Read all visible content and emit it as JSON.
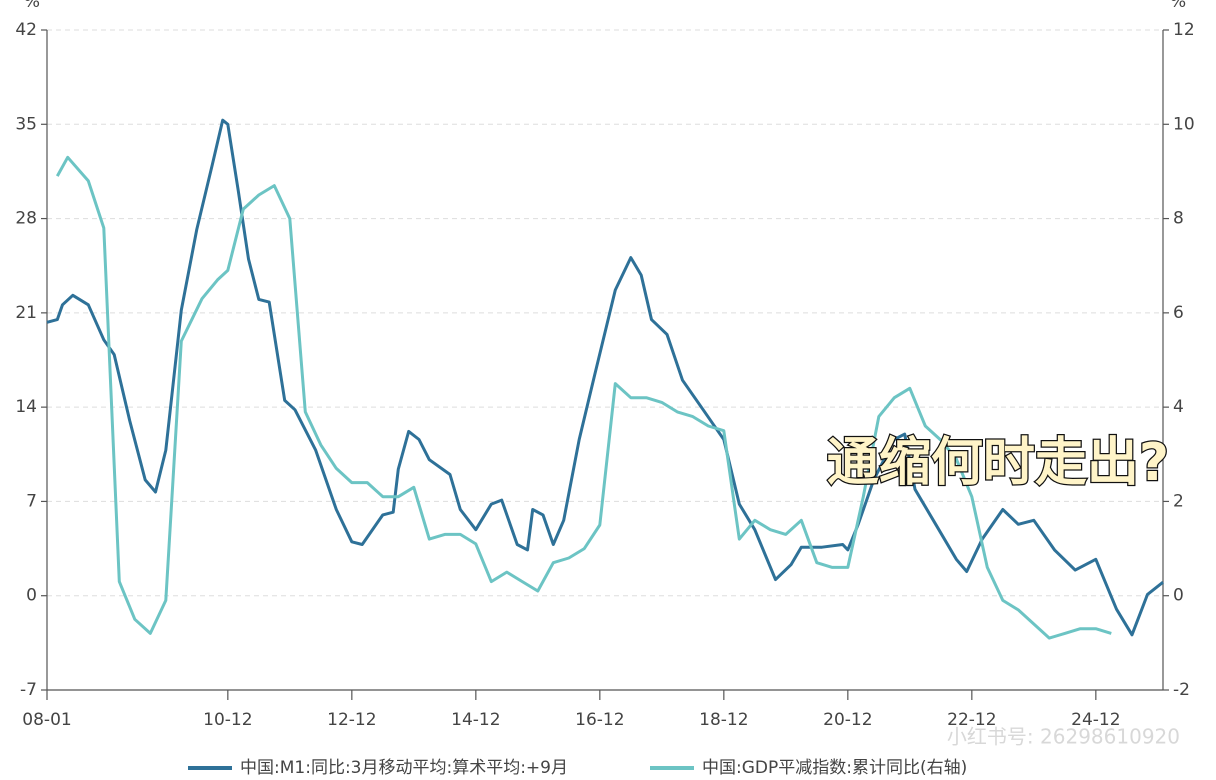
{
  "chart_data": {
    "type": "line",
    "y_unit": "%",
    "y2_unit": "%",
    "annotation": "通缩何时走出?",
    "watermark": "小红书号: 26298610920",
    "xlim": [
      "08-01",
      "26-01"
    ],
    "xticks": [
      "08-01",
      "10-12",
      "12-12",
      "14-12",
      "16-12",
      "18-12",
      "20-12",
      "22-12",
      "24-12"
    ],
    "ylim": [
      -7,
      42
    ],
    "yticks": [
      -7,
      0,
      7,
      14,
      21,
      28,
      35,
      42
    ],
    "y2lim": [
      -2,
      12
    ],
    "y2ticks": [
      -2,
      0,
      2,
      4,
      6,
      8,
      10,
      12
    ],
    "grid": true,
    "series": [
      {
        "name": "中国:M1:同比:3月移动平均:算术平均:+9月",
        "color": "#2e7198",
        "x": [
          "08-01",
          "08-03",
          "08-04",
          "08-06",
          "08-09",
          "08-12",
          "09-02",
          "09-05",
          "09-08",
          "09-10",
          "09-12",
          "10-03",
          "10-06",
          "10-09",
          "10-11",
          "10-12",
          "11-02",
          "11-04",
          "11-06",
          "11-08",
          "11-11",
          "12-01",
          "12-05",
          "12-09",
          "12-12",
          "13-02",
          "13-06",
          "13-08",
          "13-09",
          "13-11",
          "14-01",
          "14-03",
          "14-07",
          "14-09",
          "14-12",
          "15-03",
          "15-05",
          "15-08",
          "15-10",
          "15-11",
          "16-01",
          "16-03",
          "16-05",
          "16-08",
          "16-11",
          "17-03",
          "17-06",
          "17-08",
          "17-10",
          "18-01",
          "18-04",
          "18-08",
          "18-10",
          "18-12",
          "19-03",
          "19-06",
          "19-10",
          "20-01",
          "20-03",
          "20-07",
          "20-11",
          "20-12",
          "21-02",
          "21-05",
          "21-09",
          "21-11",
          "22-01",
          "22-05",
          "22-09",
          "22-11",
          "23-02",
          "23-06",
          "23-09",
          "23-12",
          "24-04",
          "24-08",
          "24-12",
          "25-04",
          "25-07",
          "25-10",
          "26-01"
        ],
        "values": [
          20.3,
          20.5,
          21.6,
          22.3,
          21.6,
          19,
          17.9,
          13,
          8.6,
          7.7,
          10.8,
          21.2,
          27.2,
          32,
          35.3,
          35,
          30.1,
          25,
          22,
          21.8,
          14.5,
          13.8,
          10.8,
          6.4,
          4,
          3.8,
          6,
          6.2,
          9.4,
          12.2,
          11.6,
          10.1,
          9,
          6.4,
          4.9,
          6.8,
          7.1,
          3.8,
          3.4,
          6.4,
          6,
          3.8,
          5.6,
          11.6,
          16.4,
          22.7,
          25.1,
          23.8,
          20.5,
          19.4,
          16,
          13.8,
          12.7,
          11.6,
          6.8,
          4.9,
          1.2,
          2.3,
          3.6,
          3.6,
          3.8,
          3.4,
          5.3,
          8.6,
          11.6,
          12,
          7.9,
          5.3,
          2.7,
          1.8,
          4.2,
          6.4,
          5.3,
          5.6,
          3.4,
          1.9,
          2.7,
          -1,
          -2.9,
          0.1,
          1
        ]
      },
      {
        "name": "中国:GDP平减指数:累计同比(右轴)",
        "color": "#6cc4c4",
        "axis": "y2",
        "x": [
          "08-03",
          "08-05",
          "08-09",
          "08-12",
          "09-03",
          "09-06",
          "09-09",
          "09-12",
          "10-03",
          "10-07",
          "10-10",
          "10-12",
          "11-03",
          "11-06",
          "11-09",
          "11-12",
          "12-03",
          "12-06",
          "12-09",
          "12-12",
          "13-03",
          "13-06",
          "13-09",
          "13-12",
          "14-03",
          "14-06",
          "14-09",
          "14-12",
          "15-03",
          "15-06",
          "15-09",
          "15-12",
          "16-03",
          "16-06",
          "16-09",
          "16-12",
          "17-03",
          "17-06",
          "17-09",
          "17-12",
          "18-03",
          "18-06",
          "18-09",
          "18-12",
          "19-03",
          "19-06",
          "19-09",
          "19-12",
          "20-03",
          "20-06",
          "20-09",
          "20-12",
          "21-03",
          "21-06",
          "21-09",
          "21-12",
          "22-03",
          "22-06",
          "22-09",
          "22-12",
          "23-03",
          "23-06",
          "23-09",
          "23-12",
          "24-03",
          "24-06",
          "24-09",
          "24-12",
          "25-03"
        ],
        "values": [
          8.9,
          9.3,
          8.8,
          7.8,
          0.3,
          -0.5,
          -0.8,
          -0.1,
          5.4,
          6.3,
          6.7,
          6.9,
          8.2,
          8.5,
          8.7,
          8,
          3.9,
          3.2,
          2.7,
          2.4,
          2.4,
          2.1,
          2.1,
          2.3,
          1.2,
          1.3,
          1.3,
          1.1,
          0.3,
          0.5,
          0.3,
          0.1,
          0.7,
          0.8,
          1,
          1.5,
          4.5,
          4.2,
          4.2,
          4.1,
          3.9,
          3.8,
          3.6,
          3.5,
          1.2,
          1.6,
          1.4,
          1.3,
          1.6,
          0.7,
          0.6,
          0.6,
          2.1,
          3.8,
          4.2,
          4.4,
          3.6,
          3.3,
          2.9,
          2.1,
          0.6,
          -0.1,
          -0.3,
          -0.6,
          -0.9,
          -0.8,
          -0.7,
          -0.7,
          -0.8
        ]
      }
    ]
  }
}
